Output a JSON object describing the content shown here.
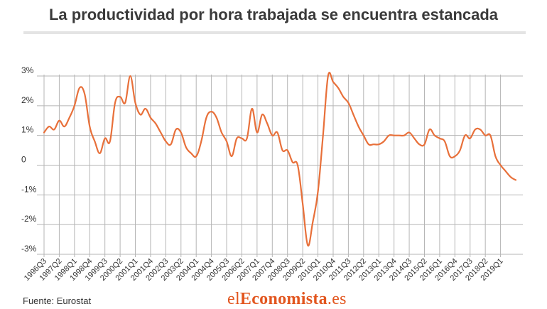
{
  "title": "La productividad por hora trabajada se encuentra estancada",
  "source": "Fuente: Eurostat",
  "brand": {
    "part1": "el",
    "part2": "Economista",
    "part3": ".es"
  },
  "colors": {
    "line": "#e8703a",
    "grid": "#b5b5b5",
    "brand": "#e2561f",
    "text": "#333333"
  },
  "chart_data": {
    "type": "line",
    "title": "La productividad por hora trabajada se encuentra estancada",
    "xlabel": "",
    "ylabel": "",
    "ylim": [
      -3,
      3
    ],
    "yticks": [
      {
        "value": 3,
        "label": "3%"
      },
      {
        "value": 2,
        "label": "2%"
      },
      {
        "value": 1,
        "label": "1%"
      },
      {
        "value": 0,
        "label": "0"
      },
      {
        "value": -1,
        "label": "-1%"
      },
      {
        "value": -2,
        "label": "-2%"
      },
      {
        "value": -3,
        "label": "-3%"
      }
    ],
    "xticks": [
      "1996Q3",
      "1997Q2",
      "1998Q1",
      "1998Q4",
      "1999Q3",
      "2000Q2",
      "2001Q1",
      "2001Q4",
      "2002Q3",
      "2003Q2",
      "2004Q1",
      "2004Q4",
      "2005Q3",
      "2006Q2",
      "2007Q1",
      "2007Q4",
      "2008Q3",
      "2009Q2",
      "2010Q1",
      "2010Q4",
      "2011Q3",
      "2012Q2",
      "2013Q1",
      "2013Q4",
      "2014Q3",
      "2015Q2",
      "2016Q1",
      "2016Q4",
      "2017Q3",
      "2018Q2",
      "2019Q1"
    ],
    "grid": true,
    "series": [
      {
        "values": [
          1.1,
          1.3,
          1.2,
          1.5,
          1.3,
          1.6,
          2.0,
          2.6,
          2.4,
          1.3,
          0.8,
          0.4,
          0.9,
          0.8,
          2.1,
          2.3,
          2.1,
          3.0,
          2.1,
          1.7,
          1.9,
          1.6,
          1.4,
          1.1,
          0.8,
          0.7,
          1.2,
          1.1,
          0.6,
          0.4,
          0.3,
          0.8,
          1.6,
          1.8,
          1.6,
          1.1,
          0.8,
          0.3,
          0.9,
          0.9,
          0.9,
          1.9,
          1.1,
          1.7,
          1.4,
          1.0,
          1.1,
          0.5,
          0.5,
          0.1,
          0.0,
          -1.3,
          -2.7,
          -1.9,
          -0.9,
          1.0,
          3.0,
          2.8,
          2.6,
          2.3,
          2.1,
          1.7,
          1.3,
          1.0,
          0.7,
          0.7,
          0.7,
          0.8,
          1.0,
          1.0,
          1.0,
          1.0,
          1.1,
          0.9,
          0.7,
          0.7,
          1.2,
          1.0,
          0.9,
          0.8,
          0.3,
          0.3,
          0.5,
          1.0,
          0.9,
          1.2,
          1.2,
          1.0,
          1.0,
          0.3,
          0.0,
          -0.2,
          -0.4,
          -0.5
        ]
      }
    ]
  }
}
